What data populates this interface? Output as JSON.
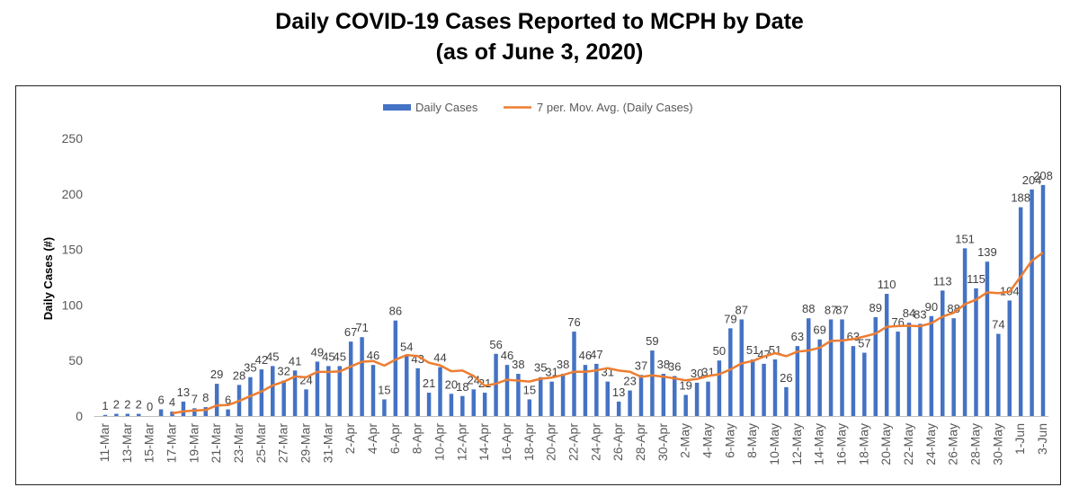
{
  "chart_data": {
    "type": "bar",
    "title": "Daily COVID-19 Cases Reported to MCPH by Date",
    "subtitle": "(as of June 3, 2020)",
    "ylabel": "Daily Cases (#)",
    "xlabel": "",
    "ylim": [
      0,
      250
    ],
    "yticks": [
      0,
      50,
      100,
      150,
      200,
      250
    ],
    "grid": false,
    "legend_position": "top",
    "legend": [
      "Daily Cases",
      "7 per. Mov. Avg. (Daily Cases)"
    ],
    "colors": {
      "bars": "#4472C4",
      "moving_avg": "#ED7D31"
    },
    "categories": [
      "11-Mar",
      "12-Mar",
      "13-Mar",
      "14-Mar",
      "15-Mar",
      "16-Mar",
      "17-Mar",
      "18-Mar",
      "19-Mar",
      "20-Mar",
      "21-Mar",
      "22-Mar",
      "23-Mar",
      "24-Mar",
      "25-Mar",
      "26-Mar",
      "27-Mar",
      "28-Mar",
      "29-Mar",
      "30-Mar",
      "31-Mar",
      "1-Apr",
      "2-Apr",
      "3-Apr",
      "4-Apr",
      "5-Apr",
      "6-Apr",
      "7-Apr",
      "8-Apr",
      "9-Apr",
      "10-Apr",
      "11-Apr",
      "12-Apr",
      "13-Apr",
      "14-Apr",
      "15-Apr",
      "16-Apr",
      "17-Apr",
      "18-Apr",
      "19-Apr",
      "20-Apr",
      "21-Apr",
      "22-Apr",
      "23-Apr",
      "24-Apr",
      "25-Apr",
      "26-Apr",
      "27-Apr",
      "28-Apr",
      "29-Apr",
      "30-Apr",
      "1-May",
      "2-May",
      "3-May",
      "4-May",
      "5-May",
      "6-May",
      "7-May",
      "8-May",
      "9-May",
      "10-May",
      "11-May",
      "12-May",
      "13-May",
      "14-May",
      "15-May",
      "16-May",
      "17-May",
      "18-May",
      "19-May",
      "20-May",
      "21-May",
      "22-May",
      "23-May",
      "24-May",
      "25-May",
      "26-May",
      "27-May",
      "28-May",
      "29-May",
      "30-May",
      "31-May",
      "1-Jun",
      "2-Jun",
      "3-Jun"
    ],
    "tick_labels": [
      "11-Mar",
      "13-Mar",
      "15-Mar",
      "17-Mar",
      "19-Mar",
      "21-Mar",
      "23-Mar",
      "25-Mar",
      "27-Mar",
      "29-Mar",
      "31-Mar",
      "2-Apr",
      "4-Apr",
      "6-Apr",
      "8-Apr",
      "10-Apr",
      "12-Apr",
      "14-Apr",
      "16-Apr",
      "18-Apr",
      "20-Apr",
      "22-Apr",
      "24-Apr",
      "26-Apr",
      "28-Apr",
      "30-Apr",
      "2-May",
      "4-May",
      "6-May",
      "8-May",
      "10-May",
      "12-May",
      "14-May",
      "16-May",
      "18-May",
      "20-May",
      "22-May",
      "24-May",
      "26-May",
      "28-May",
      "30-May",
      "1-Jun",
      "3-Jun"
    ],
    "series": [
      {
        "name": "Daily Cases",
        "values": [
          1,
          2,
          2,
          2,
          0,
          6,
          4,
          13,
          7,
          8,
          29,
          6,
          28,
          35,
          42,
          45,
          32,
          41,
          24,
          49,
          45,
          45,
          67,
          71,
          46,
          15,
          86,
          54,
          43,
          21,
          44,
          20,
          18,
          24,
          21,
          56,
          46,
          38,
          15,
          35,
          31,
          38,
          76,
          46,
          47,
          31,
          13,
          23,
          37,
          59,
          38,
          36,
          19,
          30,
          31,
          50,
          79,
          87,
          51,
          47,
          51,
          26,
          63,
          88,
          69,
          87,
          87,
          63,
          57,
          89,
          110,
          76,
          84,
          83,
          90,
          113,
          88,
          151,
          115,
          139,
          74,
          104,
          188,
          204,
          208
        ]
      },
      {
        "name": "7 per. Mov. Avg. (Daily Cases)",
        "values": [
          null,
          null,
          null,
          null,
          null,
          null,
          2.4,
          4.1,
          4.9,
          5.4,
          9.6,
          9.9,
          13.6,
          18.0,
          22.1,
          27.6,
          31.0,
          35.6,
          34.9,
          39.7,
          39.7,
          40.1,
          44.7,
          48.9,
          49.6,
          45.4,
          50.7,
          54.9,
          54.0,
          48.0,
          45.6,
          40.4,
          40.9,
          36.1,
          27.3,
          29.1,
          32.7,
          31.9,
          31.1,
          33.6,
          34.6,
          37.0,
          39.9,
          39.9,
          41.1,
          43.1,
          40.9,
          39.9,
          35.3,
          36.6,
          35.4,
          33.9,
          32.1,
          33.3,
          36.0,
          37.6,
          41.9,
          47.4,
          49.6,
          53.6,
          56.6,
          53.9,
          57.9,
          59.0,
          61.6,
          67.6,
          68.0,
          69.3,
          71.6,
          74.3,
          80.3,
          81.0,
          81.3,
          80.9,
          83.6,
          89.6,
          93.0,
          100.7,
          104.7,
          111.3,
          110.6,
          112.0,
          125.6,
          139.9,
          147.1
        ]
      }
    ]
  }
}
